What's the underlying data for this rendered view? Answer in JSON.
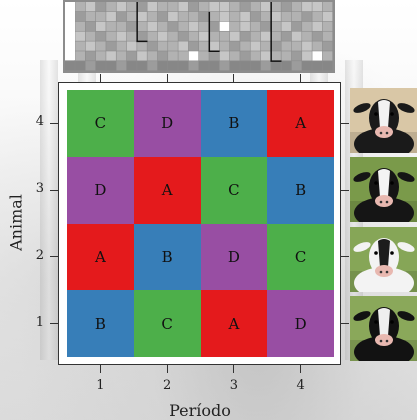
{
  "figure": {
    "xlabel": "Período",
    "ylabel": "Animal",
    "x_ticks": [
      "1",
      "2",
      "3",
      "4"
    ],
    "y_ticks": [
      "1",
      "2",
      "3",
      "4"
    ]
  },
  "latin_square": {
    "rows_top_to_bottom": [
      {
        "animal": "4",
        "cells": [
          "C",
          "D",
          "B",
          "A"
        ]
      },
      {
        "animal": "3",
        "cells": [
          "D",
          "A",
          "C",
          "B"
        ]
      },
      {
        "animal": "2",
        "cells": [
          "A",
          "B",
          "D",
          "C"
        ]
      },
      {
        "animal": "1",
        "cells": [
          "B",
          "C",
          "A",
          "D"
        ]
      }
    ]
  },
  "treatment_colors": {
    "A": "#e41a1c",
    "B": "#377eb8",
    "C": "#4daf4a",
    "D": "#984ea3"
  },
  "heatmap": {
    "palette": [
      "#ffffff",
      "#dcdcdc",
      "#c6c6c6",
      "#b2b2b2",
      "#9c9c9c",
      "#878787"
    ],
    "grid": [
      [
        2,
        3,
        2,
        4,
        3,
        2,
        3,
        4,
        2,
        3,
        3,
        2,
        4,
        3,
        2,
        2,
        3,
        4,
        3,
        2,
        3,
        4,
        3,
        2,
        2,
        3
      ],
      [
        2,
        4,
        3,
        3,
        2,
        4,
        3,
        2,
        3,
        4,
        2,
        3,
        3,
        4,
        3,
        2,
        3,
        2,
        4,
        3,
        2,
        3,
        3,
        4,
        3,
        2
      ],
      [
        2,
        3,
        4,
        2,
        3,
        3,
        4,
        3,
        2,
        3,
        4,
        3,
        2,
        3,
        4,
        0,
        3,
        2,
        3,
        4,
        3,
        2,
        4,
        3,
        2,
        3
      ],
      [
        2,
        2,
        3,
        4,
        3,
        2,
        3,
        4,
        3,
        2,
        3,
        4,
        3,
        2,
        3,
        3,
        2,
        4,
        3,
        2,
        3,
        4,
        2,
        3,
        4,
        3
      ],
      [
        2,
        3,
        2,
        3,
        4,
        3,
        2,
        3,
        4,
        3,
        3,
        2,
        4,
        3,
        2,
        3,
        4,
        3,
        2,
        3,
        4,
        3,
        3,
        2,
        3,
        4
      ],
      [
        1,
        3,
        4,
        3,
        2,
        3,
        4,
        2,
        3,
        4,
        3,
        3,
        0,
        3,
        4,
        2,
        3,
        4,
        3,
        2,
        3,
        3,
        4,
        2,
        0,
        3
      ],
      [
        5,
        5,
        4,
        5,
        5,
        4,
        5,
        5,
        4,
        5,
        5,
        5,
        4,
        5,
        5,
        4,
        5,
        5,
        5,
        4,
        5,
        5,
        4,
        5,
        5,
        5
      ]
    ],
    "icons": [
      "step-divider-icon",
      "step-divider-icon",
      "step-divider-icon"
    ]
  },
  "cow_photos": [
    {
      "animal": "4",
      "icon": "cow-photo-icon",
      "coat": "#1a1a1a",
      "patch": "#f2f2f2",
      "bg": "#d9c7a6"
    },
    {
      "animal": "3",
      "icon": "cow-photo-icon",
      "coat": "#151515",
      "patch": "#f4f4f4",
      "bg": "#7a9a4a"
    },
    {
      "animal": "2",
      "icon": "cow-photo-icon",
      "coat": "#f3f3f3",
      "patch": "#1c1c1c",
      "bg": "#86a657"
    },
    {
      "animal": "1",
      "icon": "cow-photo-icon",
      "coat": "#121212",
      "patch": "#efefef",
      "bg": "#8aa85a"
    }
  ]
}
